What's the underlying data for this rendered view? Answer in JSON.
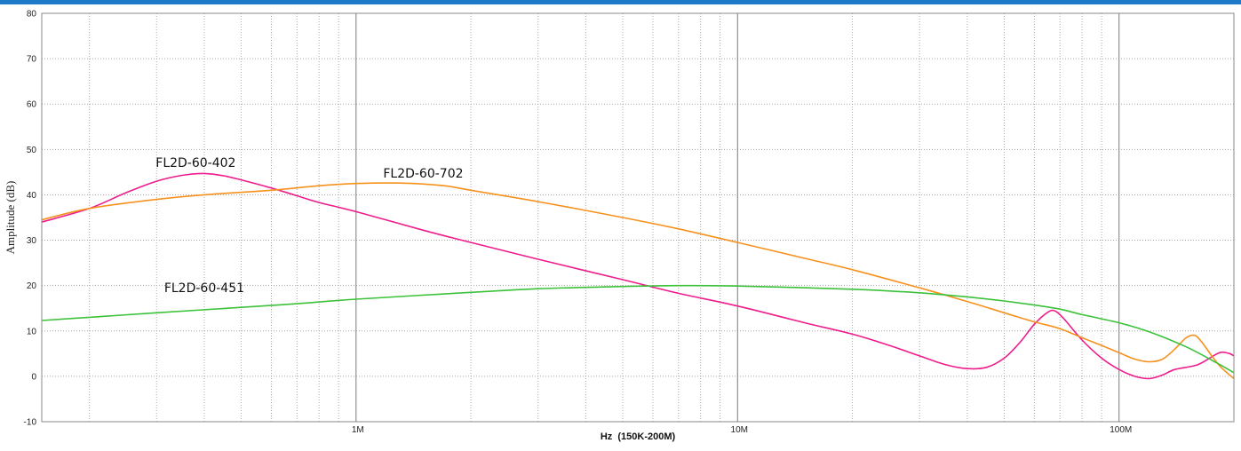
{
  "chart_data": {
    "type": "line",
    "title": "",
    "xlabel": "Hz  (150K-200M)",
    "ylabel": "Amplitude (dB)",
    "x_scale": "log",
    "xlim": [
      150000,
      200000000
    ],
    "ylim": [
      -10,
      80
    ],
    "y_ticks": [
      -10,
      0,
      10,
      20,
      30,
      40,
      50,
      60,
      70,
      80
    ],
    "x_ticks": [
      {
        "value": 1000000,
        "label": "1M"
      },
      {
        "value": 10000000,
        "label": "10M"
      },
      {
        "value": 100000000,
        "label": "100M"
      }
    ],
    "grid": true,
    "series": [
      {
        "name": "FL2D-60-402",
        "color": "#ee1c8c",
        "points": [
          [
            150000,
            34
          ],
          [
            200000,
            37
          ],
          [
            250000,
            40.5
          ],
          [
            300000,
            43
          ],
          [
            350000,
            44.3
          ],
          [
            400000,
            44.7
          ],
          [
            450000,
            44.2
          ],
          [
            500000,
            43.3
          ],
          [
            600000,
            41.5
          ],
          [
            700000,
            39.8
          ],
          [
            800000,
            38.3
          ],
          [
            1000000,
            36.3
          ],
          [
            1500000,
            32.2
          ],
          [
            2000000,
            29.5
          ],
          [
            3000000,
            25.8
          ],
          [
            5000000,
            21.3
          ],
          [
            7000000,
            18.3
          ],
          [
            10000000,
            15.5
          ],
          [
            15000000,
            11.8
          ],
          [
            20000000,
            9.3
          ],
          [
            25000000,
            6.8
          ],
          [
            30000000,
            4.5
          ],
          [
            35000000,
            2.6
          ],
          [
            40000000,
            1.7
          ],
          [
            45000000,
            2
          ],
          [
            50000000,
            4
          ],
          [
            55000000,
            7.5
          ],
          [
            60000000,
            11.5
          ],
          [
            65000000,
            14.1
          ],
          [
            68000000,
            14.4
          ],
          [
            72000000,
            12.5
          ],
          [
            80000000,
            8
          ],
          [
            90000000,
            4
          ],
          [
            100000000,
            1.5
          ],
          [
            110000000,
            0
          ],
          [
            120000000,
            -0.5
          ],
          [
            130000000,
            0.3
          ],
          [
            140000000,
            1.5
          ],
          [
            160000000,
            2.5
          ],
          [
            175000000,
            4.3
          ],
          [
            185000000,
            5.3
          ],
          [
            195000000,
            5
          ],
          [
            200000000,
            4.5
          ]
        ]
      },
      {
        "name": "FL2D-60-702",
        "color": "#f7911e",
        "points": [
          [
            150000,
            34.5
          ],
          [
            200000,
            37
          ],
          [
            300000,
            39
          ],
          [
            400000,
            40
          ],
          [
            600000,
            41
          ],
          [
            800000,
            42
          ],
          [
            1000000,
            42.5
          ],
          [
            1300000,
            42.6
          ],
          [
            1700000,
            42
          ],
          [
            2000000,
            41
          ],
          [
            3000000,
            38.5
          ],
          [
            5000000,
            35
          ],
          [
            7000000,
            32.5
          ],
          [
            10000000,
            29.5
          ],
          [
            15000000,
            26
          ],
          [
            20000000,
            23.5
          ],
          [
            30000000,
            19.5
          ],
          [
            40000000,
            16.5
          ],
          [
            50000000,
            14
          ],
          [
            60000000,
            12
          ],
          [
            70000000,
            10.5
          ],
          [
            80000000,
            8.5
          ],
          [
            90000000,
            6.8
          ],
          [
            100000000,
            5.2
          ],
          [
            110000000,
            3.8
          ],
          [
            120000000,
            3.2
          ],
          [
            130000000,
            3.8
          ],
          [
            140000000,
            6
          ],
          [
            150000000,
            8.5
          ],
          [
            158000000,
            9
          ],
          [
            165000000,
            7.5
          ],
          [
            175000000,
            4.5
          ],
          [
            185000000,
            2
          ],
          [
            200000000,
            -0.5
          ]
        ]
      },
      {
        "name": "FL2D-60-451",
        "color": "#3cc23a",
        "points": [
          [
            150000,
            12.3
          ],
          [
            200000,
            13
          ],
          [
            300000,
            14
          ],
          [
            500000,
            15.2
          ],
          [
            700000,
            16
          ],
          [
            1000000,
            17
          ],
          [
            2000000,
            18.5
          ],
          [
            3000000,
            19.3
          ],
          [
            5000000,
            19.8
          ],
          [
            7000000,
            20
          ],
          [
            10000000,
            19.9
          ],
          [
            20000000,
            19.2
          ],
          [
            30000000,
            18.4
          ],
          [
            40000000,
            17.5
          ],
          [
            50000000,
            16.6
          ],
          [
            60000000,
            15.7
          ],
          [
            70000000,
            14.8
          ],
          [
            80000000,
            13.6
          ],
          [
            100000000,
            11.8
          ],
          [
            120000000,
            9.8
          ],
          [
            150000000,
            6.5
          ],
          [
            180000000,
            3
          ],
          [
            200000000,
            0.8
          ]
        ]
      }
    ],
    "annotations": [
      {
        "text": "FL2D-60-402",
        "x": 380000,
        "y": 46.2,
        "series": "FL2D-60-402"
      },
      {
        "text": "FL2D-60-702",
        "x": 1500000,
        "y": 43.8,
        "series": "FL2D-60-702"
      },
      {
        "text": "FL2D-60-451",
        "x": 400000,
        "y": 18.6,
        "series": "FL2D-60-451"
      }
    ]
  }
}
